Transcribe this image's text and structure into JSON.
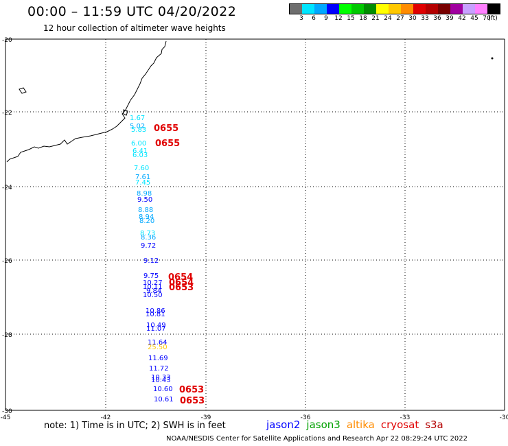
{
  "title": "00:00 – 11:59 UTC 04/20/2022",
  "subtitle": "12 hour collection of altimeter wave heights",
  "legend": {
    "colors": [
      "#6e6e6e",
      "#00e5ff",
      "#00a8ff",
      "#0000ff",
      "#00ff00",
      "#00c800",
      "#008c00",
      "#ffff00",
      "#ffc800",
      "#ff8c00",
      "#e00000",
      "#b40000",
      "#780000",
      "#a000a0",
      "#c8a0ff",
      "#ff80ff",
      "#000000"
    ],
    "labels": [
      "3",
      "6",
      "9",
      "12",
      "15",
      "18",
      "21",
      "24",
      "27",
      "30",
      "33",
      "36",
      "39",
      "42",
      "45",
      "70",
      "(ft)"
    ]
  },
  "axes": {
    "y_labels": [
      "-20",
      "-22",
      "-24",
      "-26",
      "-28",
      "-30"
    ],
    "x_labels": [
      "-45",
      "-42",
      "-39",
      "-36",
      "-33",
      "-30"
    ]
  },
  "wave_heights": [
    {
      "value": "1.67",
      "color": "#00e5ff"
    },
    {
      "value": "5.02",
      "color": "#00a8ff"
    },
    {
      "value": "5.83",
      "color": "#00e5ff"
    },
    {
      "value": "6.00",
      "color": "#00e5ff"
    },
    {
      "value": "6.41",
      "color": "#00e5ff"
    },
    {
      "value": "6.03",
      "color": "#00e5ff"
    },
    {
      "value": "7.60",
      "color": "#00e5ff"
    },
    {
      "value": "7.61",
      "color": "#00a8ff"
    },
    {
      "value": "7.45",
      "color": "#00e5ff"
    },
    {
      "value": "8.98",
      "color": "#00a8ff"
    },
    {
      "value": "9.50",
      "color": "#0000ff"
    },
    {
      "value": "8.88",
      "color": "#00a8ff"
    },
    {
      "value": "8.94",
      "color": "#00a8ff"
    },
    {
      "value": "8.20",
      "color": "#00a8ff"
    },
    {
      "value": "8.73",
      "color": "#00e5ff"
    },
    {
      "value": "8.36",
      "color": "#00a8ff"
    },
    {
      "value": "9.72",
      "color": "#0000ff"
    },
    {
      "value": "9.12",
      "color": "#0000ff"
    },
    {
      "value": "9.75",
      "color": "#0000ff"
    },
    {
      "value": "10.27",
      "color": "#0000ff"
    },
    {
      "value": "10.11",
      "color": "#0000ff"
    },
    {
      "value": "9.84",
      "color": "#0000ff"
    },
    {
      "value": "10.50",
      "color": "#0000ff"
    },
    {
      "value": "10.86",
      "color": "#0000ff"
    },
    {
      "value": "10.81",
      "color": "#0000ff"
    },
    {
      "value": "10.49",
      "color": "#0000ff"
    },
    {
      "value": "11.07",
      "color": "#0000ff"
    },
    {
      "value": "11.64",
      "color": "#0000ff"
    },
    {
      "value": "25.50",
      "color": "#ffc800"
    },
    {
      "value": "11.69",
      "color": "#0000ff"
    },
    {
      "value": "11.72",
      "color": "#0000ff"
    },
    {
      "value": "10.33",
      "color": "#0000ff"
    },
    {
      "value": "10.43",
      "color": "#0000ff"
    },
    {
      "value": "10.60",
      "color": "#0000ff"
    },
    {
      "value": "10.61",
      "color": "#0000ff"
    }
  ],
  "times": [
    "0655",
    "0655",
    "0654",
    "0654",
    "0653",
    "0653",
    "0653"
  ],
  "note": "note:  1) Time is in UTC;  2) SWH is in feet",
  "satellites": [
    {
      "name": "jason2",
      "color": "#0000ff"
    },
    {
      "name": "jason3",
      "color": "#00a000"
    },
    {
      "name": "altika",
      "color": "#ff8c00"
    },
    {
      "name": "cryosat",
      "color": "#e00000"
    },
    {
      "name": "s3a",
      "color": "#b40000"
    }
  ],
  "credit": "NOAA/NESDIS Center for Satellite Applications and Research    Apr 22 08:29:24 UTC 2022"
}
